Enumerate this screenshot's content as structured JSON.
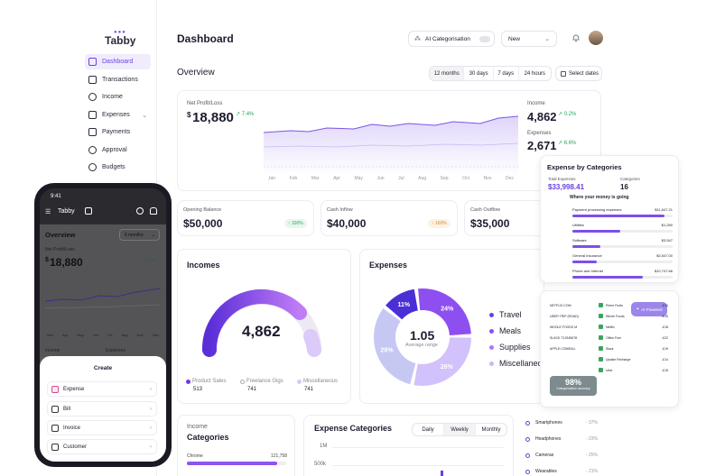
{
  "app": {
    "logo": "Tabby",
    "logo_dots": "●●●"
  },
  "sidebar": {
    "items": [
      {
        "label": "Dashboard",
        "icon": "grid-icon",
        "active": true
      },
      {
        "label": "Transactions",
        "icon": "swap-icon"
      },
      {
        "label": "Income",
        "icon": "income-icon"
      },
      {
        "label": "Expenses",
        "icon": "wallet-icon",
        "chevron": "⌄"
      },
      {
        "label": "Payments",
        "icon": "payments-icon"
      },
      {
        "label": "Approval",
        "icon": "approval-icon"
      },
      {
        "label": "Budgets",
        "icon": "budget-icon"
      }
    ]
  },
  "header": {
    "title": "Dashboard",
    "ai_label": "AI Categorisation",
    "new_label": "New",
    "new_chevron": "⌄"
  },
  "overview": {
    "title": "Overview",
    "ranges": [
      "12 months",
      "30 days",
      "7 days",
      "24 hours"
    ],
    "select_dates": "Select dates",
    "net_label": "Net Profit/Loss",
    "net_currency": "$",
    "net_value": "18,880",
    "net_change": "7.4%",
    "income_label": "Income",
    "income_value": "4,862",
    "income_change": "0.2%",
    "expenses_label": "Expenses",
    "expenses_value": "2,671",
    "expenses_change": "6.6%",
    "months": [
      "Jan",
      "Feb",
      "Mar",
      "Apr",
      "May",
      "Jun",
      "Jul",
      "Aug",
      "Sep",
      "Oct",
      "Nov",
      "Dec"
    ]
  },
  "stats": [
    {
      "label": "Opening Balance",
      "value": "$50,000",
      "badge": "↑ 100%",
      "color": "#2ea35f",
      "bg": "#e8f7ee"
    },
    {
      "label": "Cash Inflow",
      "value": "$40,000",
      "badge": "↑ 100%",
      "color": "#d98a1f",
      "bg": "#fdf2e3"
    },
    {
      "label": "Cash Outflow",
      "value": "$35,000",
      "badge": "",
      "color": "#888",
      "bg": "#fff"
    }
  ],
  "incomes": {
    "title": "Incomes",
    "value": "4,862",
    "legend": [
      {
        "name": "Product Sales",
        "value": "513",
        "color": "#6b3fe0"
      },
      {
        "name": "Freelance Gigs",
        "value": "741",
        "color": "#c8c3d6"
      },
      {
        "name": "Miscellaneous",
        "value": "741",
        "color": "#d9c8fb"
      }
    ]
  },
  "expenses": {
    "title": "Expenses",
    "center_value": "1.05",
    "center_label": "Average range",
    "slices": [
      {
        "label": "11%",
        "value": 11,
        "color": "#4a2fd6"
      },
      {
        "label": "24%",
        "value": 24,
        "color": "#8d4ff0"
      },
      {
        "label": "26%",
        "value": 26,
        "color": "#d2c1fb"
      },
      {
        "label": "29%",
        "value": 29,
        "color": "#c6c8f3"
      }
    ],
    "legend": [
      {
        "name": "Travel",
        "color": "#6b3fe0"
      },
      {
        "name": "Meals",
        "color": "#8d4ff0"
      },
      {
        "name": "Supplies",
        "color": "#a97af5"
      },
      {
        "name": "Miscellaneous",
        "color": "#cbb7f8"
      }
    ]
  },
  "income_categories": {
    "title_top": "Income",
    "title_bottom": "Categories",
    "row_label": "Chrome",
    "row_value": "121,758"
  },
  "expense_categories_chart": {
    "title": "Expense Categories",
    "tabs": [
      "Daily",
      "Weekly",
      "Monthly"
    ],
    "active_tab": "Weekly",
    "y_ticks": [
      "1M",
      "500k"
    ]
  },
  "category_list": [
    {
      "name": "Smartphones",
      "value": "- 37%"
    },
    {
      "name": "Headphones",
      "value": "- 23%"
    },
    {
      "name": "Cameras",
      "value": "- 25%"
    },
    {
      "name": "Wearables",
      "value": "- 21%"
    }
  ],
  "expense_panel": {
    "title": "Expense by Categories",
    "total_label": "Total Expenses",
    "total_value": "$33,998.41",
    "cats_label": "Categories",
    "cats_value": "16",
    "section": "Where your money is going",
    "rows": [
      {
        "name": "Payment processing expenses",
        "amount": "$11,647.21",
        "pct": 0.92
      },
      {
        "name": "Utilities",
        "amount": "$1,260",
        "pct": 0.48
      },
      {
        "name": "Software",
        "amount": "$3,547",
        "pct": 0.28
      },
      {
        "name": "General insurance",
        "amount": "$3,547.00",
        "pct": 0.24
      },
      {
        "name": "Phone and Internet",
        "amount": "$10,747.66",
        "pct": 0.7
      }
    ]
  },
  "transactions_panel": {
    "ai_button": "AI Powered",
    "rows": [
      {
        "left": "NETFLIX.COM",
        "right": "Prime Fruits",
        "amt": "-£10"
      },
      {
        "left": "UBER TRIP (ROAD)",
        "right": "Whole Foods",
        "amt": "-£15"
      },
      {
        "left": "WHOLE FOODS M",
        "right": "Netflix",
        "amt": "-£18"
      },
      {
        "left": "SLACK T12345678",
        "right": "Office Furn",
        "amt": "-£22"
      },
      {
        "left": "APPLE.COM/BILL",
        "right": "Slack",
        "amt": "-£19"
      },
      {
        "left": "",
        "right": "Update Recharge",
        "amt": "-£14"
      },
      {
        "left": "",
        "right": "Uber",
        "amt": "-£15"
      }
    ],
    "accuracy_value": "98%",
    "accuracy_label": "Categorization accuracy"
  },
  "phone": {
    "time": "9:41",
    "brand": "Tabby",
    "overview": "Overview",
    "range": "6 months",
    "net_label": "Net Profit/Loss",
    "net_currency": "$",
    "net_value": "18,880",
    "net_change": "3.4%",
    "months": [
      "Mar",
      "Apr",
      "May",
      "Jun",
      "Jul",
      "Aug",
      "Nov",
      "Dec"
    ],
    "income_label": "Income",
    "expenses_label": "Expenses",
    "sheet_title": "Create",
    "sheet_items": [
      "Expense",
      "Bill",
      "Invoice",
      "Customer"
    ],
    "sheet_chev": "›"
  }
}
